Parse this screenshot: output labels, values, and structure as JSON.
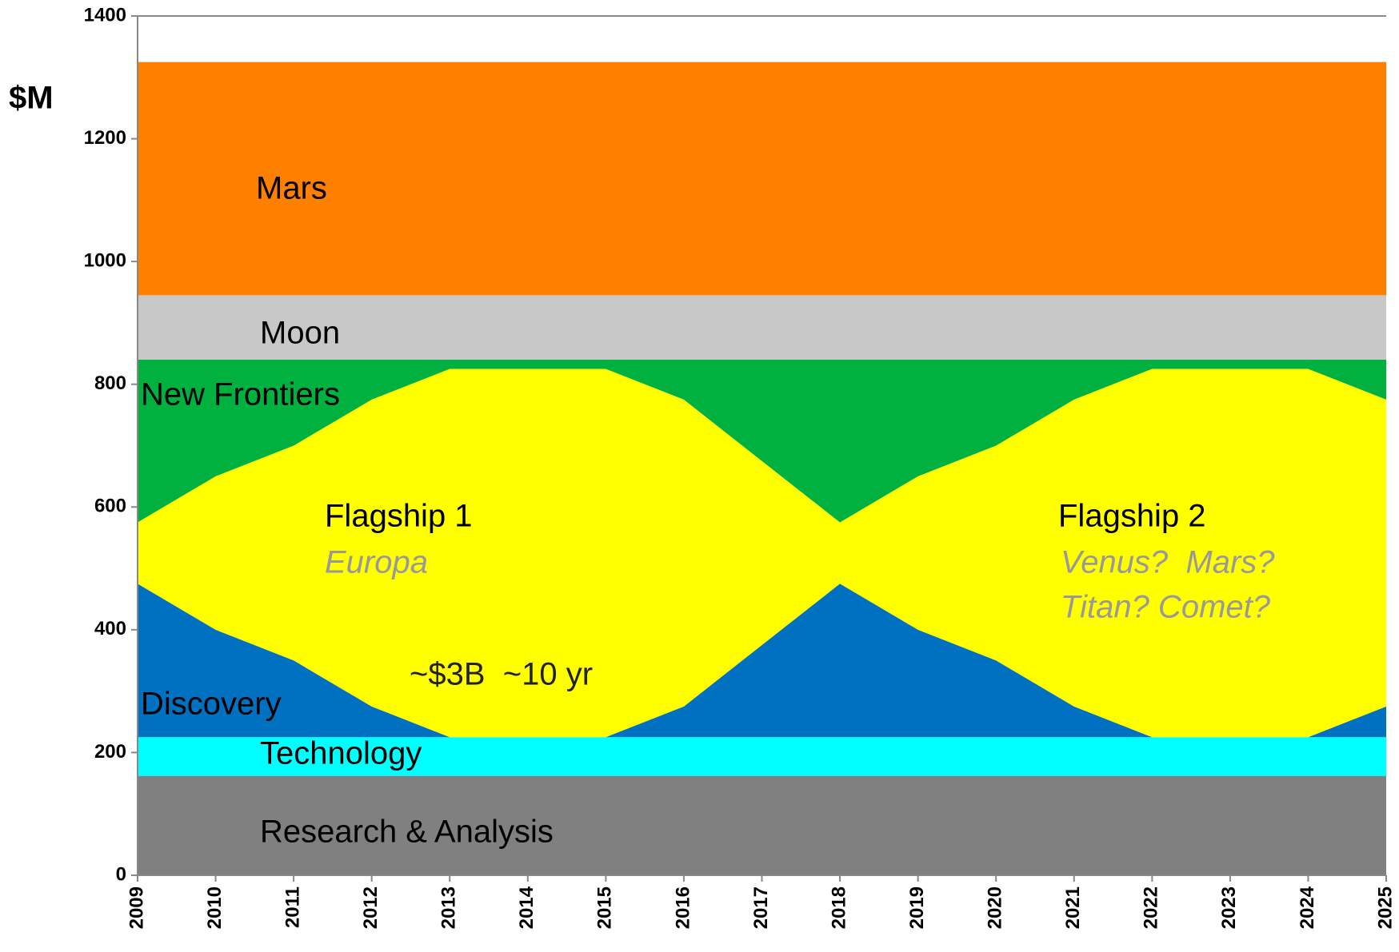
{
  "chart_data": {
    "type": "stacked_area",
    "y_label": "$M",
    "x": [
      2009,
      2010,
      2011,
      2012,
      2013,
      2014,
      2015,
      2016,
      2017,
      2018,
      2019,
      2020,
      2021,
      2022,
      2023,
      2024,
      2025
    ],
    "xlim": [
      2009,
      2025
    ],
    "xticks": [
      2009,
      2010,
      2011,
      2012,
      2013,
      2014,
      2015,
      2016,
      2017,
      2018,
      2019,
      2020,
      2021,
      2022,
      2023,
      2024,
      2025
    ],
    "ylim": [
      0,
      1400
    ],
    "yticks": [
      0,
      200,
      400,
      600,
      800,
      1000,
      1200,
      1400
    ],
    "series": [
      {
        "name": "Research & Analysis",
        "color": "#808080",
        "values": [
          162,
          162,
          162,
          162,
          162,
          162,
          162,
          162,
          162,
          162,
          162,
          162,
          162,
          162,
          162,
          162,
          162
        ]
      },
      {
        "name": "Technology",
        "color": "#00ffff",
        "values": [
          63,
          63,
          63,
          63,
          63,
          63,
          63,
          63,
          63,
          63,
          63,
          63,
          63,
          63,
          63,
          63,
          63
        ]
      },
      {
        "name": "Discovery",
        "color": "#0070c0",
        "values": [
          250,
          175,
          125,
          50,
          0,
          0,
          0,
          50,
          150,
          250,
          175,
          125,
          50,
          0,
          0,
          0,
          50
        ]
      },
      {
        "name": "Flagship",
        "color": "#ffff00",
        "values": [
          100,
          250,
          350,
          500,
          600,
          600,
          600,
          500,
          300,
          100,
          250,
          350,
          500,
          600,
          600,
          600,
          500
        ]
      },
      {
        "name": "New Frontiers",
        "color": "#00b140",
        "values": [
          265,
          190,
          140,
          65,
          15,
          15,
          15,
          65,
          165,
          265,
          190,
          140,
          65,
          15,
          15,
          15,
          65
        ]
      },
      {
        "name": "Moon",
        "color": "#c8c8c8",
        "values": [
          105,
          105,
          105,
          105,
          105,
          105,
          105,
          105,
          105,
          105,
          105,
          105,
          105,
          105,
          105,
          105,
          105
        ]
      },
      {
        "name": "Mars",
        "color": "#ff7f00",
        "values": [
          380,
          380,
          380,
          380,
          380,
          380,
          380,
          380,
          380,
          380,
          380,
          380,
          380,
          380,
          380,
          380,
          380
        ]
      }
    ],
    "labels": [
      "Research & Analysis",
      "Technology",
      "Discovery",
      "Flagship 1",
      "Flagship 2",
      "New Frontiers",
      "Moon",
      "Mars"
    ],
    "annotations": [
      "Europa",
      "Venus?  Mars?",
      "Titan? Comet?",
      "~$3B  ~10 yr"
    ]
  }
}
